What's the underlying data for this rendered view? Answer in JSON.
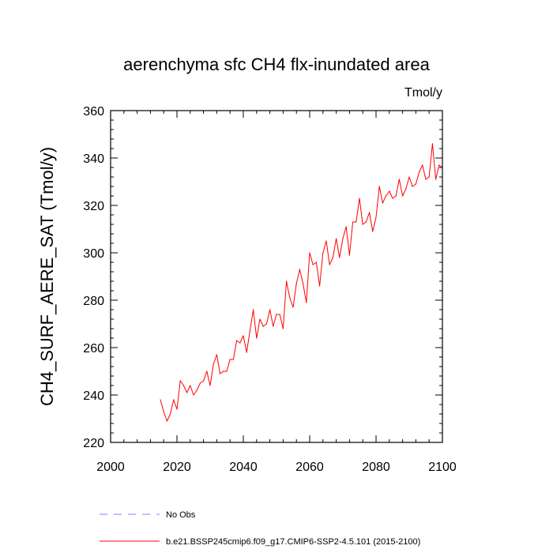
{
  "chart_data": {
    "type": "line",
    "title": "aerenchyma sfc CH4 flx-inundated area",
    "units_label": "Tmol/y",
    "ylabel": "CH4_SURF_AERE_SAT  (Tmol/y)",
    "xlabel": "",
    "xlim": [
      2000,
      2100
    ],
    "ylim": [
      220,
      360
    ],
    "x_ticks": [
      2000,
      2020,
      2040,
      2060,
      2080,
      2100
    ],
    "y_ticks": [
      220,
      240,
      260,
      280,
      300,
      320,
      340,
      360
    ],
    "grid": false,
    "legend_position": "bottom",
    "series": [
      {
        "name": "b.e21.BSSP245cmip6.f09_g17.CMIP6-SSP2-4.5.101 (2015-2100)",
        "color": "#ff0000",
        "x": [
          2015,
          2016,
          2017,
          2018,
          2019,
          2020,
          2021,
          2022,
          2023,
          2024,
          2025,
          2026,
          2027,
          2028,
          2029,
          2030,
          2031,
          2032,
          2033,
          2034,
          2035,
          2036,
          2037,
          2038,
          2039,
          2040,
          2041,
          2042,
          2043,
          2044,
          2045,
          2046,
          2047,
          2048,
          2049,
          2050,
          2051,
          2052,
          2053,
          2054,
          2055,
          2056,
          2057,
          2058,
          2059,
          2060,
          2061,
          2062,
          2063,
          2064,
          2065,
          2066,
          2067,
          2068,
          2069,
          2070,
          2071,
          2072,
          2073,
          2074,
          2075,
          2076,
          2077,
          2078,
          2079,
          2080,
          2081,
          2082,
          2083,
          2084,
          2085,
          2086,
          2087,
          2088,
          2089,
          2090,
          2091,
          2092,
          2093,
          2094,
          2095,
          2096,
          2097,
          2098,
          2099,
          2100
        ],
        "values": [
          238,
          233,
          229,
          232,
          238,
          234,
          246,
          244,
          241,
          244,
          240,
          242,
          245,
          246,
          250,
          244,
          253,
          257,
          249,
          250,
          250,
          255,
          255,
          263,
          262,
          265,
          258,
          267,
          276,
          264,
          272,
          269,
          270,
          276,
          269,
          274,
          274,
          268,
          288,
          281,
          277,
          287,
          293,
          287,
          279,
          300,
          295,
          296,
          286,
          300,
          305,
          295,
          298,
          306,
          298,
          306,
          311,
          299,
          313,
          313,
          323,
          312,
          313,
          317,
          309,
          315,
          328,
          321,
          324,
          326,
          323,
          324,
          331,
          324,
          327,
          332,
          328,
          329,
          334,
          337,
          331,
          332,
          346,
          331,
          337,
          336
        ]
      },
      {
        "name": "No Obs",
        "color": "#8080ff",
        "x": [],
        "values": []
      }
    ]
  }
}
